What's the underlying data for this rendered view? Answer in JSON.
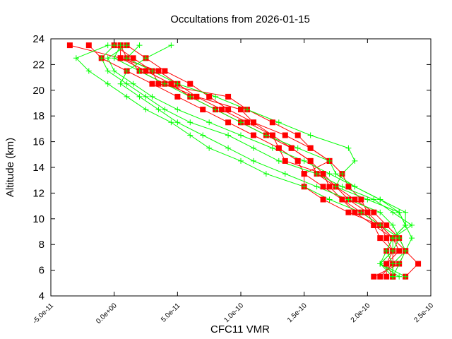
{
  "chart_data": {
    "type": "line",
    "title": "Occultations from 2026-01-15",
    "xlabel": "CFC11 VMR",
    "ylabel": "Altitude (km)",
    "xlim": [
      -5e-11,
      2.5e-10
    ],
    "ylim": [
      4,
      24
    ],
    "xticks": [
      -5e-11,
      0,
      5e-11,
      1e-10,
      1.5e-10,
      2e-10,
      2.5e-10
    ],
    "xtick_labels": [
      "-5.0e-11",
      "0.0e+00",
      "5.0e-11",
      "1.0e-10",
      "1.5e-10",
      "2.0e-10",
      "2.5e-10"
    ],
    "yticks": [
      4,
      6,
      8,
      10,
      12,
      14,
      16,
      18,
      20,
      22,
      24
    ],
    "ytick_labels": [
      "4",
      "6",
      "8",
      "10",
      "12",
      "14",
      "16",
      "18",
      "20",
      "22",
      "24"
    ],
    "grid": false,
    "altitudes": [
      23.5,
      22.5,
      21.5,
      20.5,
      19.5,
      18.5,
      17.5,
      16.5,
      15.5,
      14.5,
      13.5,
      12.5,
      11.5,
      10.5,
      9.5,
      8.5,
      7.5,
      6.5,
      5.5
    ],
    "series": [
      {
        "color": "#ff0000",
        "marker": "square",
        "profiles": [
          [
            -3.5e-11,
            5e-12,
            2.5e-11,
            4.5e-11,
            6e-11,
            8e-11,
            1e-10,
            1.2e-10,
            1.4e-10,
            1.55e-10,
            1.6e-10,
            1.75e-10,
            1.85e-10,
            2e-10,
            2.1e-10,
            2.15e-10,
            2.2e-10,
            2.2e-10,
            2.1e-10
          ],
          [
            -2e-11,
            -1e-11,
            1e-11,
            3e-11,
            5e-11,
            7e-11,
            9e-11,
            1.1e-10,
            1.3e-10,
            1.45e-10,
            1.5e-10,
            1.65e-10,
            1.8e-10,
            1.95e-10,
            2.1e-10,
            2.2e-10,
            2.25e-10,
            2.15e-10,
            2.2e-10
          ],
          [
            5e-12,
            1e-11,
            2e-11,
            4e-11,
            6.5e-11,
            8.5e-11,
            1.05e-10,
            1.25e-10,
            1.4e-10,
            1.55e-10,
            1.65e-10,
            1.75e-10,
            1.9e-10,
            2.05e-10,
            2.15e-10,
            2.25e-10,
            2.3e-10,
            2.25e-10,
            2.05e-10
          ],
          [
            1e-11,
            2.5e-11,
            4e-11,
            6e-11,
            7.5e-11,
            9e-11,
            1.1e-10,
            1.35e-10,
            1.55e-10,
            1.7e-10,
            1.8e-10,
            1.85e-10,
            1.95e-10,
            2e-10,
            2.05e-10,
            2.1e-10,
            2.2e-10,
            2.15e-10,
            2.15e-10
          ],
          [
            5e-12,
            5e-12,
            3.5e-11,
            5e-11,
            6.5e-11,
            1e-10,
            1.1e-10,
            1.25e-10,
            1.3e-10,
            1.35e-10,
            1.65e-10,
            1.7e-10,
            1.8e-10,
            1.9e-10,
            2.05e-10,
            2.2e-10,
            2.3e-10,
            2.4e-10,
            2.3e-10
          ],
          [
            0,
            1.5e-11,
            3e-11,
            3.5e-11,
            9e-11,
            1.05e-10,
            1.25e-10,
            1.45e-10,
            1.55e-10,
            1.7e-10,
            1.5e-10,
            1.5e-10,
            1.65e-10,
            1.85e-10,
            2.1e-10,
            2.2e-10,
            2.15e-10,
            2.2e-10,
            2.2e-10
          ]
        ]
      },
      {
        "color": "#00ff00",
        "marker": "plus",
        "profiles": [
          [
            -5e-12,
            -3e-11,
            -2e-11,
            -5e-12,
            1e-11,
            2.5e-11,
            4.5e-11,
            6e-11,
            7.5e-11,
            1e-10,
            1.2e-10,
            1.5e-10,
            1.7e-10,
            1.95e-10,
            2.1e-10,
            2.25e-10,
            2.3e-10,
            2.2e-10,
            2.2e-10
          ],
          [
            4.5e-11,
            2.5e-11,
            1e-11,
            5e-12,
            2e-11,
            3.5e-11,
            5e-11,
            7e-11,
            9e-11,
            1.1e-10,
            1.35e-10,
            1.6e-10,
            1.85e-10,
            2.1e-10,
            2.2e-10,
            2.25e-10,
            2.2e-10,
            2.1e-10,
            2.3e-10
          ],
          [
            5e-12,
            0,
            2e-11,
            4e-11,
            6e-11,
            8e-11,
            1e-10,
            1.2e-10,
            1.45e-10,
            1.7e-10,
            1.75e-10,
            1.9e-10,
            2.1e-10,
            2.25e-10,
            2.3e-10,
            2.35e-10,
            2.3e-10,
            2.25e-10,
            2.2e-10
          ],
          [
            1e-11,
            -5e-12,
            0,
            1.5e-11,
            3e-11,
            5e-11,
            7.5e-11,
            1e-10,
            1.25e-10,
            1.5e-10,
            1.7e-10,
            1.9e-10,
            2.1e-10,
            2.3e-10,
            2.3e-10,
            2.2e-10,
            2.15e-10,
            2.1e-10,
            2.25e-10
          ],
          [
            2e-11,
            1e-11,
            3e-11,
            5e-11,
            8e-11,
            1.05e-10,
            1.3e-10,
            1.55e-10,
            1.85e-10,
            1.9e-10,
            1.8e-10,
            1.75e-10,
            2e-10,
            2.25e-10,
            2.3e-10,
            2.2e-10,
            2.2e-10,
            2.1e-10,
            2.2e-10
          ],
          [
            0,
            -1e-11,
            -5e-12,
            1e-11,
            2.5e-11,
            4e-11,
            6e-11,
            9e-11,
            1.1e-10,
            1.3e-10,
            1.6e-10,
            1.8e-10,
            2.05e-10,
            2.2e-10,
            2.35e-10,
            2.2e-10,
            2.15e-10,
            2.2e-10,
            2.2e-10
          ]
        ]
      }
    ]
  }
}
